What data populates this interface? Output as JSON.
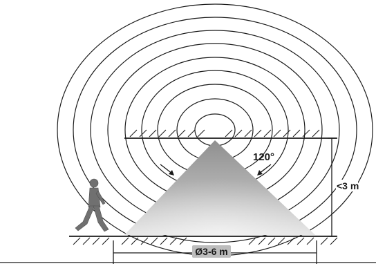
{
  "labels": {
    "angle": "120°",
    "height": "<3 m",
    "diameter": "Ø3-6 m"
  },
  "colors": {
    "line": "#1a1a1a",
    "cone_top": "#8f8f8f",
    "cone_bottom": "#e6e6e6",
    "person": "#707070",
    "label_bg": "#bdbdbd"
  },
  "icons": {
    "person": "walking-person-icon",
    "hatch": "floor-hatch"
  }
}
